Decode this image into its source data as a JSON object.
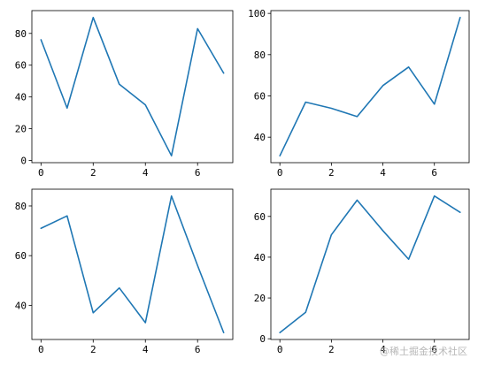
{
  "figure": {
    "layout": "2x2 grid of line plots",
    "line_color": "#1f77b4",
    "axes_color": "#000000",
    "background": "#ffffff",
    "watermark_text": "@稀土掘金技术社区"
  },
  "chart_data": [
    {
      "type": "line",
      "panel": "top-left",
      "title": "",
      "xlabel": "",
      "ylabel": "",
      "x": [
        0,
        1,
        2,
        3,
        4,
        5,
        6,
        7
      ],
      "series": [
        {
          "values": [
            76,
            33,
            90,
            48,
            35,
            3,
            83,
            55
          ]
        }
      ],
      "xlim": [
        -0.35,
        7.35
      ],
      "ylim": [
        -1.35,
        94.35
      ],
      "xticks": [
        0,
        2,
        4,
        6
      ],
      "yticks": [
        0,
        20,
        40,
        60,
        80
      ],
      "grid": false,
      "legend": "none"
    },
    {
      "type": "line",
      "panel": "top-right",
      "title": "",
      "xlabel": "",
      "ylabel": "",
      "x": [
        0,
        1,
        2,
        3,
        4,
        5,
        6,
        7
      ],
      "series": [
        {
          "values": [
            31,
            57,
            54,
            50,
            65,
            74,
            56,
            98
          ]
        }
      ],
      "xlim": [
        -0.35,
        7.35
      ],
      "ylim": [
        27.65,
        101.35
      ],
      "xticks": [
        0,
        2,
        4,
        6
      ],
      "yticks": [
        40,
        60,
        80,
        100
      ],
      "grid": false,
      "legend": "none"
    },
    {
      "type": "line",
      "panel": "bottom-left",
      "title": "",
      "xlabel": "",
      "ylabel": "",
      "x": [
        0,
        1,
        2,
        3,
        4,
        5,
        6,
        7
      ],
      "series": [
        {
          "values": [
            71,
            76,
            37,
            47,
            33,
            84,
            56,
            29
          ]
        }
      ],
      "xlim": [
        -0.35,
        7.35
      ],
      "ylim": [
        26.25,
        86.75
      ],
      "xticks": [
        0,
        2,
        4,
        6
      ],
      "yticks": [
        40,
        60,
        80
      ],
      "grid": false,
      "legend": "none"
    },
    {
      "type": "line",
      "panel": "bottom-right",
      "title": "",
      "xlabel": "",
      "ylabel": "",
      "x": [
        0,
        1,
        2,
        3,
        4,
        5,
        6,
        7
      ],
      "series": [
        {
          "values": [
            3,
            13,
            51,
            68,
            53,
            39,
            70,
            62
          ]
        }
      ],
      "xlim": [
        -0.35,
        7.35
      ],
      "ylim": [
        -0.35,
        73.35
      ],
      "xticks": [
        0,
        2,
        4,
        6
      ],
      "yticks": [
        0,
        20,
        40,
        60
      ],
      "grid": false,
      "legend": "none"
    }
  ]
}
